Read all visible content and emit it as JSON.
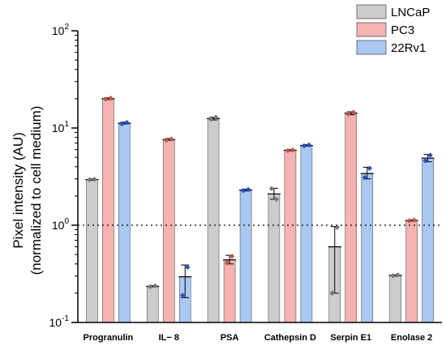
{
  "chart_data": {
    "type": "bar",
    "title": "",
    "xlabel": "",
    "ylabel": "Pixel intensity (AU)",
    "ylabel_sub": "(normalized to cell medium)",
    "yscale": "log",
    "ylim": [
      0.1,
      100
    ],
    "yticks": [
      {
        "value": 0.1,
        "base": "10",
        "exp": "-1"
      },
      {
        "value": 1,
        "base": "10",
        "exp": "0"
      },
      {
        "value": 10,
        "base": "10",
        "exp": "1"
      },
      {
        "value": 100,
        "base": "10",
        "exp": "2"
      }
    ],
    "reference_line": 1,
    "grid": false,
    "legend_position": "top-right",
    "categories": [
      "Progranulin",
      "IL− 8",
      "PSA",
      "Cathepsin D",
      "Serpin E1",
      "Enolase 2"
    ],
    "series": [
      {
        "name": "LNCaP",
        "color": "#cccccc",
        "dot_color": "#777777",
        "values": [
          2.95,
          0.235,
          12.5,
          2.1,
          0.6,
          0.305
        ],
        "err_low": [
          2.9,
          0.232,
          12.1,
          1.85,
          0.2,
          0.3
        ],
        "err_high": [
          3.0,
          0.24,
          12.9,
          2.4,
          0.97,
          0.31
        ],
        "points": [
          [
            2.93,
            2.97
          ],
          [
            0.233,
            0.238
          ],
          [
            12.3,
            12.9
          ],
          [
            2.38,
            1.85
          ],
          [
            0.2,
            0.95
          ],
          [
            0.302,
            0.308
          ]
        ]
      },
      {
        "name": "PC3",
        "color": "#f6b3b3",
        "dot_color": "#b65a47",
        "values": [
          20.0,
          7.6,
          0.44,
          5.9,
          14.2,
          1.12
        ],
        "err_low": [
          19.6,
          7.45,
          0.4,
          5.8,
          13.7,
          1.1
        ],
        "err_high": [
          20.5,
          7.8,
          0.49,
          6.0,
          14.7,
          1.14
        ],
        "points": [
          [
            19.8,
            20.3
          ],
          [
            7.5,
            7.7
          ],
          [
            0.41,
            0.48
          ],
          [
            5.85,
            5.95
          ],
          [
            13.9,
            14.5
          ],
          [
            1.11,
            1.13
          ]
        ]
      },
      {
        "name": "22Rv1",
        "color": "#a9c8f2",
        "dot_color": "#2a52be",
        "values": [
          11.2,
          0.295,
          2.3,
          6.6,
          3.4,
          4.9
        ],
        "err_low": [
          11.0,
          0.18,
          2.25,
          6.5,
          3.0,
          4.5
        ],
        "err_high": [
          11.5,
          0.39,
          2.35,
          6.75,
          3.95,
          5.35
        ],
        "points": [
          [
            11.0,
            11.4
          ],
          [
            0.19,
            0.37
          ],
          [
            2.27,
            2.33
          ],
          [
            6.55,
            6.7
          ],
          [
            3.1,
            3.85
          ],
          [
            4.6,
            5.25
          ]
        ]
      }
    ]
  }
}
